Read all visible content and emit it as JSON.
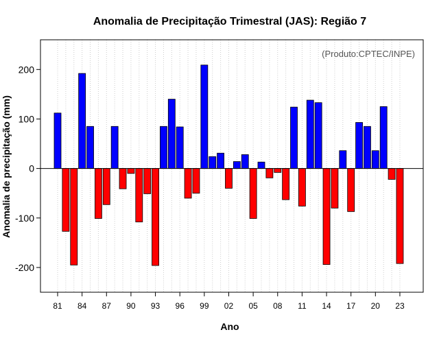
{
  "chart_data": {
    "type": "bar",
    "title": "Anomalia de Precipitação Trimestral (JAS): Região 7",
    "xlabel": "Ano",
    "ylabel": "Anomalia de precipitação (mm)",
    "annotation": "(Produto:CPTEC/INPE)",
    "ylim": [
      -250,
      260
    ],
    "yticks": [
      -200,
      -100,
      0,
      100,
      200
    ],
    "xtick_labels": [
      "81",
      "84",
      "87",
      "90",
      "93",
      "96",
      "99",
      "02",
      "05",
      "08",
      "11",
      "14",
      "17",
      "20",
      "23"
    ],
    "xtick_years": [
      1981,
      1984,
      1987,
      1990,
      1993,
      1996,
      1999,
      2002,
      2005,
      2008,
      2011,
      2014,
      2017,
      2020,
      2023
    ],
    "positive_color": "#0000ff",
    "negative_color": "#ff0000",
    "categories": [
      1981,
      1982,
      1983,
      1984,
      1985,
      1986,
      1987,
      1988,
      1989,
      1990,
      1991,
      1992,
      1993,
      1994,
      1995,
      1996,
      1997,
      1998,
      1999,
      2000,
      2001,
      2002,
      2003,
      2004,
      2005,
      2006,
      2007,
      2008,
      2009,
      2010,
      2011,
      2012,
      2013,
      2014,
      2015,
      2016,
      2017,
      2018,
      2019,
      2020,
      2021,
      2022,
      2023
    ],
    "values": [
      112,
      -127,
      -195,
      192,
      85,
      -101,
      -73,
      85,
      -41,
      -10,
      -108,
      -51,
      -196,
      85,
      140,
      84,
      -60,
      -50,
      209,
      24,
      31,
      -40,
      14,
      28,
      -101,
      13,
      -19,
      -8,
      -63,
      124,
      -76,
      138,
      133,
      -194,
      -80,
      36,
      -87,
      93,
      85,
      36,
      125,
      -22,
      -192
    ]
  }
}
